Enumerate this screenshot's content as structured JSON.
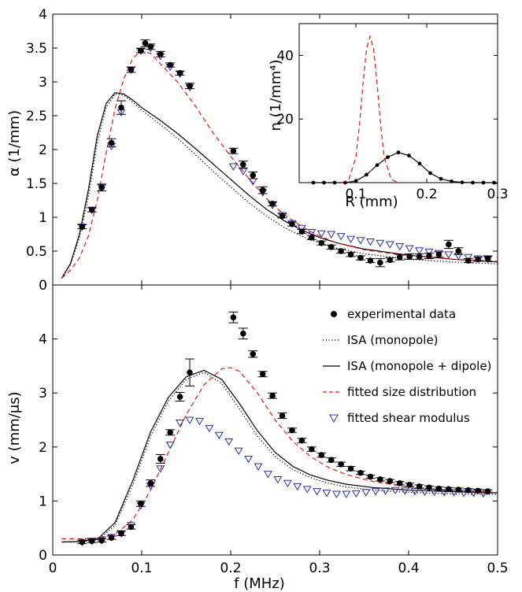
{
  "chart_data": [
    {
      "id": "attenuation",
      "type": "line",
      "ylabel": "α (1/mm)",
      "xlabel": "",
      "xlim": [
        0,
        0.5
      ],
      "ylim": [
        0,
        4
      ],
      "xticks": [
        "0",
        "0.1",
        "0.2",
        "0.3",
        "0.4",
        "0.5"
      ],
      "yticks": [
        "0",
        "0.5",
        "1",
        "1.5",
        "2",
        "2.5",
        "3",
        "3.5",
        "4"
      ],
      "grid": false,
      "series": [
        {
          "key": "experimental",
          "style": "markers-filled-circle-errorbar",
          "color": "#000000",
          "x": [
            0.033,
            0.044,
            0.055,
            0.066,
            0.077,
            0.088,
            0.099,
            0.104,
            0.11,
            0.121,
            0.132,
            0.143,
            0.154,
            0.203,
            0.214,
            0.225,
            0.236,
            0.247,
            0.258,
            0.269,
            0.28,
            0.291,
            0.302,
            0.313,
            0.324,
            0.335,
            0.346,
            0.357,
            0.368,
            0.379,
            0.39,
            0.401,
            0.412,
            0.423,
            0.434,
            0.445,
            0.456,
            0.467,
            0.478,
            0.489
          ],
          "y": [
            0.86,
            1.11,
            1.44,
            2.1,
            2.62,
            3.18,
            3.46,
            3.57,
            3.52,
            3.41,
            3.25,
            3.13,
            2.94,
            1.98,
            1.78,
            1.62,
            1.4,
            1.2,
            1.02,
            0.9,
            0.79,
            0.7,
            0.62,
            0.56,
            0.5,
            0.45,
            0.4,
            0.36,
            0.33,
            0.37,
            0.41,
            0.42,
            0.42,
            0.43,
            0.45,
            0.6,
            0.5,
            0.36,
            0.38,
            0.39
          ],
          "err": [
            0.03,
            0.03,
            0.05,
            0.06,
            0.1,
            0.04,
            0.03,
            0.05,
            0.04,
            0.04,
            0.03,
            0.03,
            0.04,
            0.04,
            0.05,
            0.05,
            0.05,
            0.03,
            0.03,
            0.03,
            0.03,
            0.03,
            0.03,
            0.03,
            0.03,
            0.03,
            0.03,
            0.03,
            0.06,
            0.03,
            0.04,
            0.04,
            0.04,
            0.04,
            0.04,
            0.06,
            0.05,
            0.03,
            0.03,
            0.04
          ]
        },
        {
          "key": "isa_monopole",
          "style": "dotted",
          "color": "#000000",
          "x": [
            0.01,
            0.02,
            0.03,
            0.04,
            0.05,
            0.06,
            0.07,
            0.08,
            0.09,
            0.1,
            0.12,
            0.14,
            0.16,
            0.18,
            0.2,
            0.22,
            0.24,
            0.26,
            0.28,
            0.3,
            0.32,
            0.35,
            0.4,
            0.45,
            0.5
          ],
          "y": [
            0.1,
            0.3,
            0.7,
            1.3,
            2.1,
            2.62,
            2.82,
            2.8,
            2.7,
            2.58,
            2.38,
            2.17,
            1.93,
            1.68,
            1.45,
            1.22,
            1.02,
            0.85,
            0.72,
            0.62,
            0.54,
            0.46,
            0.38,
            0.34,
            0.31
          ]
        },
        {
          "key": "isa_monopole_dipole",
          "style": "solid",
          "color": "#000000",
          "x": [
            0.01,
            0.02,
            0.03,
            0.04,
            0.05,
            0.06,
            0.07,
            0.08,
            0.09,
            0.1,
            0.12,
            0.14,
            0.16,
            0.18,
            0.2,
            0.22,
            0.24,
            0.26,
            0.28,
            0.3,
            0.32,
            0.35,
            0.4,
            0.45,
            0.5
          ],
          "y": [
            0.1,
            0.32,
            0.75,
            1.4,
            2.2,
            2.68,
            2.84,
            2.82,
            2.73,
            2.62,
            2.44,
            2.24,
            2.02,
            1.79,
            1.56,
            1.33,
            1.12,
            0.95,
            0.81,
            0.7,
            0.62,
            0.53,
            0.44,
            0.38,
            0.34
          ]
        },
        {
          "key": "fitted_size",
          "style": "dashed",
          "color": "#e0181b",
          "x": [
            0.01,
            0.02,
            0.03,
            0.04,
            0.05,
            0.06,
            0.07,
            0.08,
            0.09,
            0.1,
            0.11,
            0.12,
            0.14,
            0.16,
            0.18,
            0.2,
            0.22,
            0.24,
            0.26,
            0.28,
            0.3,
            0.32,
            0.35,
            0.4,
            0.45,
            0.5
          ],
          "y": [
            0.1,
            0.22,
            0.4,
            0.72,
            1.25,
            1.95,
            2.6,
            3.05,
            3.35,
            3.46,
            3.42,
            3.28,
            3.0,
            2.65,
            2.25,
            1.9,
            1.58,
            1.28,
            1.04,
            0.86,
            0.72,
            0.62,
            0.52,
            0.43,
            0.38,
            0.35
          ]
        },
        {
          "key": "fitted_shear",
          "style": "markers-open-triangle",
          "color": "#2b2fa6",
          "x": [
            0.033,
            0.044,
            0.055,
            0.066,
            0.077,
            0.088,
            0.099,
            0.11,
            0.121,
            0.132,
            0.143,
            0.154,
            0.203,
            0.214,
            0.225,
            0.236,
            0.247,
            0.258,
            0.269,
            0.28,
            0.291,
            0.302,
            0.313,
            0.324,
            0.335,
            0.346,
            0.357,
            0.368,
            0.379,
            0.39,
            0.401,
            0.412,
            0.423,
            0.434,
            0.445,
            0.456,
            0.467,
            0.478,
            0.489
          ],
          "y": [
            0.86,
            1.11,
            1.44,
            2.05,
            2.55,
            3.18,
            3.46,
            3.5,
            3.38,
            3.22,
            3.12,
            2.92,
            1.75,
            1.68,
            1.53,
            1.37,
            1.18,
            1.03,
            0.91,
            0.84,
            0.78,
            0.76,
            0.75,
            0.72,
            0.68,
            0.66,
            0.64,
            0.62,
            0.6,
            0.57,
            0.54,
            0.51,
            0.49,
            0.47,
            0.45,
            0.43,
            0.41,
            0.39,
            0.38
          ]
        }
      ]
    },
    {
      "id": "inset",
      "type": "line",
      "ylabel": "n (1/mm⁴)",
      "xlabel": "R (mm)",
      "xlim": [
        0.02,
        0.3
      ],
      "ylim": [
        0,
        50
      ],
      "xticks": [
        "0.1",
        "0.2",
        "0.3"
      ],
      "yticks": [
        "20",
        "40"
      ],
      "grid": false,
      "series": [
        {
          "key": "distribution_measured",
          "style": "solid-with-dots",
          "color": "#000000",
          "x": [
            0.04,
            0.055,
            0.07,
            0.085,
            0.1,
            0.115,
            0.13,
            0.145,
            0.16,
            0.175,
            0.19,
            0.205,
            0.22,
            0.235,
            0.25,
            0.265,
            0.28,
            0.295
          ],
          "y": [
            0,
            0,
            0,
            0,
            0.5,
            2.5,
            5.5,
            8.0,
            9.5,
            8.5,
            6.0,
            3.0,
            1.2,
            0.4,
            0.1,
            0,
            0,
            0
          ]
        },
        {
          "key": "distribution_fitted",
          "style": "dashed",
          "color": "#e0181b",
          "x": [
            0.08,
            0.09,
            0.1,
            0.105,
            0.11,
            0.115,
            0.12,
            0.125,
            0.13,
            0.135,
            0.14,
            0.15,
            0.16
          ],
          "y": [
            0,
            1.0,
            8.0,
            18.0,
            31.0,
            42.0,
            46.0,
            42.0,
            31.0,
            18.0,
            8.0,
            1.0,
            0
          ]
        }
      ]
    },
    {
      "id": "velocity",
      "type": "line",
      "ylabel": "v (mm/μs)",
      "xlabel": "f (MHz)",
      "xlim": [
        0,
        0.5
      ],
      "ylim": [
        0,
        5
      ],
      "xticks": [
        "0",
        "0.1",
        "0.2",
        "0.3",
        "0.4",
        "0.5"
      ],
      "yticks": [
        "0",
        "1",
        "2",
        "3",
        "4"
      ],
      "grid": false,
      "series": [
        {
          "key": "experimental",
          "style": "markers-filled-circle-errorbar",
          "color": "#000000",
          "x": [
            0.033,
            0.044,
            0.055,
            0.066,
            0.077,
            0.088,
            0.099,
            0.11,
            0.121,
            0.132,
            0.143,
            0.154,
            0.203,
            0.214,
            0.225,
            0.236,
            0.247,
            0.258,
            0.269,
            0.28,
            0.291,
            0.302,
            0.313,
            0.324,
            0.335,
            0.346,
            0.357,
            0.368,
            0.379,
            0.39,
            0.401,
            0.412,
            0.423,
            0.434,
            0.445,
            0.456,
            0.467,
            0.478,
            0.489
          ],
          "y": [
            0.24,
            0.26,
            0.27,
            0.32,
            0.4,
            0.52,
            0.95,
            1.33,
            1.78,
            2.27,
            2.93,
            3.38,
            4.4,
            4.1,
            3.72,
            3.35,
            2.95,
            2.58,
            2.31,
            2.12,
            1.96,
            1.85,
            1.76,
            1.68,
            1.6,
            1.52,
            1.45,
            1.4,
            1.37,
            1.33,
            1.3,
            1.27,
            1.25,
            1.23,
            1.22,
            1.21,
            1.2,
            1.19,
            1.18
          ],
          "err": [
            0.03,
            0.03,
            0.03,
            0.03,
            0.04,
            0.04,
            0.05,
            0.06,
            0.08,
            0.05,
            0.08,
            0.25,
            0.1,
            0.1,
            0.06,
            0.05,
            0.05,
            0.05,
            0.04,
            0.04,
            0.04,
            0.04,
            0.04,
            0.04,
            0.04,
            0.03,
            0.03,
            0.03,
            0.03,
            0.03,
            0.03,
            0.03,
            0.03,
            0.03,
            0.03,
            0.03,
            0.03,
            0.03,
            0.03
          ]
        },
        {
          "key": "isa_monopole",
          "style": "dotted",
          "color": "#000000",
          "x": [
            0.01,
            0.03,
            0.05,
            0.07,
            0.09,
            0.11,
            0.13,
            0.15,
            0.17,
            0.19,
            0.21,
            0.23,
            0.25,
            0.27,
            0.29,
            0.31,
            0.33,
            0.36,
            0.4,
            0.45,
            0.5
          ],
          "y": [
            0.24,
            0.24,
            0.27,
            0.55,
            1.3,
            2.2,
            2.85,
            3.25,
            3.38,
            3.18,
            2.7,
            2.2,
            1.82,
            1.58,
            1.43,
            1.33,
            1.26,
            1.2,
            1.16,
            1.13,
            1.12
          ]
        },
        {
          "key": "isa_monopole_dipole",
          "style": "solid",
          "color": "#000000",
          "x": [
            0.01,
            0.03,
            0.05,
            0.07,
            0.09,
            0.11,
            0.13,
            0.15,
            0.17,
            0.19,
            0.21,
            0.23,
            0.25,
            0.27,
            0.29,
            0.31,
            0.33,
            0.36,
            0.4,
            0.45,
            0.5
          ],
          "y": [
            0.24,
            0.25,
            0.29,
            0.6,
            1.38,
            2.28,
            2.92,
            3.3,
            3.42,
            3.25,
            2.8,
            2.3,
            1.9,
            1.64,
            1.48,
            1.38,
            1.31,
            1.25,
            1.2,
            1.17,
            1.15
          ]
        },
        {
          "key": "fitted_size",
          "style": "dashed",
          "color": "#e0181b",
          "x": [
            0.01,
            0.03,
            0.05,
            0.07,
            0.09,
            0.11,
            0.13,
            0.15,
            0.17,
            0.19,
            0.2,
            0.21,
            0.23,
            0.25,
            0.27,
            0.29,
            0.31,
            0.33,
            0.36,
            0.4,
            0.45,
            0.5
          ],
          "y": [
            0.3,
            0.3,
            0.31,
            0.38,
            0.65,
            1.2,
            1.9,
            2.6,
            3.15,
            3.45,
            3.47,
            3.4,
            3.0,
            2.5,
            2.1,
            1.82,
            1.62,
            1.49,
            1.36,
            1.26,
            1.19,
            1.16
          ]
        },
        {
          "key": "fitted_shear",
          "style": "markers-open-triangle",
          "color": "#2b2fa6",
          "x": [
            0.033,
            0.044,
            0.055,
            0.066,
            0.077,
            0.088,
            0.099,
            0.11,
            0.121,
            0.132,
            0.143,
            0.154,
            0.165,
            0.176,
            0.187,
            0.198,
            0.209,
            0.22,
            0.231,
            0.242,
            0.253,
            0.264,
            0.275,
            0.286,
            0.297,
            0.308,
            0.319,
            0.33,
            0.341,
            0.352,
            0.363,
            0.374,
            0.385,
            0.396,
            0.407,
            0.418,
            0.429,
            0.44,
            0.451,
            0.462,
            0.473,
            0.484
          ],
          "y": [
            0.24,
            0.26,
            0.27,
            0.33,
            0.4,
            0.55,
            0.92,
            1.28,
            1.6,
            2.04,
            2.45,
            2.5,
            2.48,
            2.35,
            2.22,
            2.1,
            1.93,
            1.78,
            1.64,
            1.5,
            1.4,
            1.33,
            1.27,
            1.22,
            1.18,
            1.15,
            1.13,
            1.13,
            1.14,
            1.16,
            1.18,
            1.19,
            1.2,
            1.19,
            1.18,
            1.17,
            1.17,
            1.16,
            1.16,
            1.15,
            1.15,
            1.14
          ]
        }
      ]
    }
  ],
  "legend": [
    {
      "key": "experimental",
      "label": "experimental data",
      "symbol": "filled-circle",
      "color": "#000000"
    },
    {
      "key": "isa_monopole",
      "label": "ISA (monopole)",
      "symbol": "dotted-line",
      "color": "#000000"
    },
    {
      "key": "isa_monopole_dipole",
      "label": "ISA (monopole + dipole)",
      "symbol": "solid-line",
      "color": "#000000"
    },
    {
      "key": "fitted_size",
      "label": "fitted size distribution",
      "symbol": "dashed-line",
      "color": "#e0181b"
    },
    {
      "key": "fitted_shear",
      "label": "fitted shear modulus",
      "symbol": "open-triangle",
      "color": "#2b2fa6"
    }
  ]
}
